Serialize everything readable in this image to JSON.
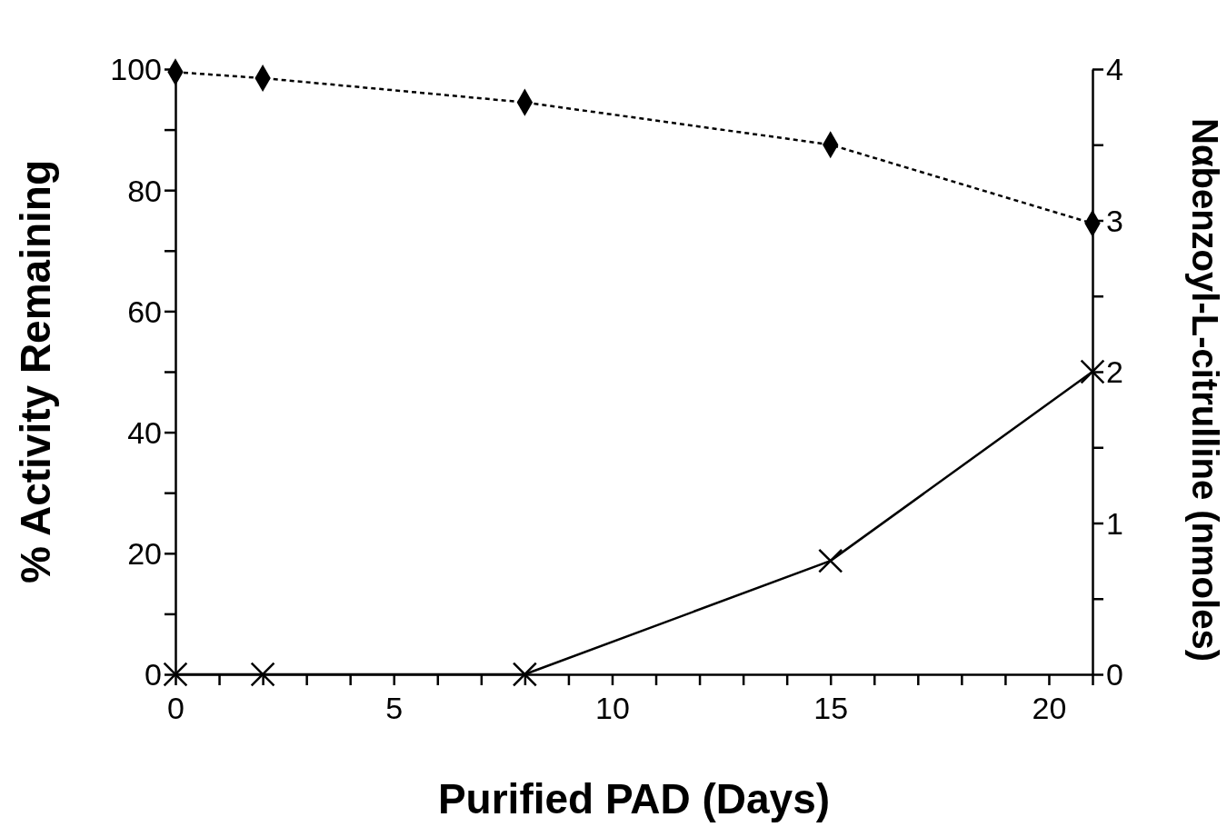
{
  "chart_data": {
    "type": "line",
    "xlabel": "Purified PAD (Days)",
    "ylabel": "% Activity Remaining",
    "y2label": "Nαbenzoyl-L-citrulline (nmoles)",
    "x": [
      0,
      2,
      8,
      15,
      21
    ],
    "xlim": [
      0,
      21
    ],
    "xticks": [
      0,
      {
        "value": 1,
        "label": null
      },
      {
        "value": 2,
        "label": null
      },
      {
        "value": 3,
        "label": null
      },
      {
        "value": 4,
        "label": null
      },
      5,
      {
        "value": 6,
        "label": null
      },
      {
        "value": 7,
        "label": null
      },
      {
        "value": 8,
        "label": null
      },
      {
        "value": 9,
        "label": null
      },
      10,
      {
        "value": 11,
        "label": null
      },
      {
        "value": 12,
        "label": null
      },
      {
        "value": 13,
        "label": null
      },
      {
        "value": 14,
        "label": null
      },
      15,
      {
        "value": 16,
        "label": null
      },
      {
        "value": 17,
        "label": null
      },
      {
        "value": 18,
        "label": null
      },
      {
        "value": 19,
        "label": null
      },
      20,
      {
        "value": 21,
        "label": null
      }
    ],
    "ylim": [
      0,
      100
    ],
    "yticks": [
      0,
      {
        "value": 10,
        "label": null
      },
      20,
      {
        "value": 30,
        "label": null
      },
      40,
      {
        "value": 50,
        "label": null
      },
      60,
      {
        "value": 70,
        "label": null
      },
      80,
      {
        "value": 90,
        "label": null
      },
      100
    ],
    "y2lim": [
      0,
      4
    ],
    "y2ticks": [
      0,
      {
        "value": 0.5,
        "label": null
      },
      1,
      {
        "value": 1.5,
        "label": null
      },
      2,
      {
        "value": 2.5,
        "label": null
      },
      3,
      {
        "value": 3.5,
        "label": null
      },
      4
    ],
    "grid": false,
    "series": [
      {
        "color": "#000000",
        "values": [
          99.5,
          98.5,
          94.5,
          87.5,
          74.5
        ],
        "marker": "diamond",
        "line_style": "dotted"
      },
      {
        "color": "#000000",
        "values": [
          0,
          0,
          0,
          0.75,
          2
        ],
        "marker": "cross",
        "line_style": "solid",
        "axis": "y2"
      }
    ]
  }
}
